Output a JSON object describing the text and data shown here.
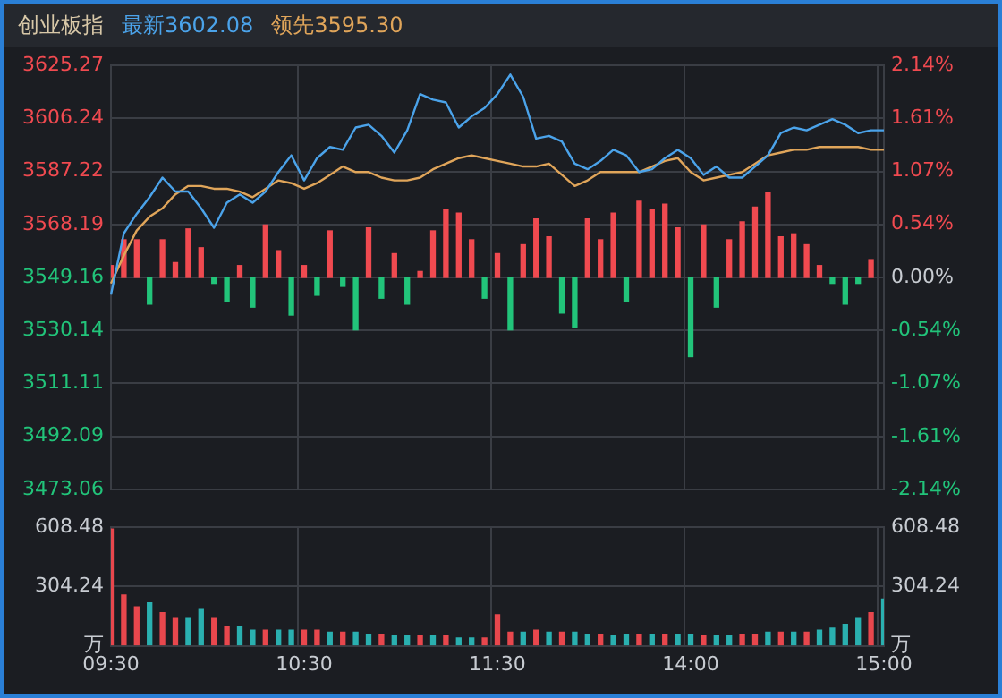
{
  "chart_data": [
    {
      "type": "line",
      "title": "创业板指",
      "legend": "top left",
      "grid": true,
      "marker": "none",
      "tick_labels": "y",
      "categories": [
        null,
        null,
        null,
        null,
        null,
        null,
        null,
        null,
        null,
        null,
        null,
        null,
        null,
        null,
        null,
        null,
        null,
        null,
        null,
        null,
        null,
        null,
        null,
        null,
        null,
        null,
        null,
        null,
        null,
        null,
        null,
        null,
        null,
        null,
        null,
        null,
        null,
        null,
        null,
        null,
        null,
        null,
        null,
        null,
        null,
        null,
        null,
        null,
        null,
        null,
        null,
        null,
        null,
        null,
        null,
        null,
        null,
        null,
        null,
        null,
        null
      ],
      "ylim": [
        3473.06,
        3625.27
      ],
      "yticks": [
        3473.06,
        3492.09,
        3511.11,
        3530.14,
        3549.16,
        3568.19,
        3587.22,
        3606.24,
        3625.27
      ],
      "y2lim": [
        -2.14,
        2.14
      ],
      "y2ticks": [
        {
          "value": -2.14,
          "label": "-2.14%"
        },
        {
          "value": -1.61,
          "label": "-1.61%"
        },
        {
          "value": -1.07,
          "label": "-1.07%"
        },
        {
          "value": -0.54,
          "label": "-0.54%"
        },
        {
          "value": 0,
          "label": "0.00%"
        },
        {
          "value": 0.54,
          "label": "0.54%"
        },
        {
          "value": 1.07,
          "label": "1.07%"
        },
        {
          "value": 1.61,
          "label": "1.61%"
        },
        {
          "value": 2.14,
          "label": "2.14%"
        }
      ],
      "series": [
        {
          "name": "最新3602.08",
          "color": "#4ba3ea",
          "values": [
            3543,
            3565,
            3572,
            3578,
            3585,
            3580,
            3580,
            3574,
            3567,
            3576,
            3579,
            3576,
            3580,
            3587,
            3593,
            3584,
            3592,
            3596,
            3595,
            3603,
            3604,
            3600,
            3594,
            3602,
            3615,
            3613,
            3612,
            3603,
            3607,
            3610,
            3615,
            3622,
            3614,
            3599,
            3600,
            3598,
            3590,
            3588,
            3591,
            3595,
            3593,
            3587,
            3588,
            3592,
            3595,
            3592,
            3586,
            3589,
            3585,
            3585,
            3589,
            3593,
            3601,
            3603,
            3602,
            3604,
            3606,
            3604,
            3601,
            3602,
            3602
          ]
        },
        {
          "name": "领先3595.30",
          "color": "#e0a55a",
          "values": [
            3547,
            3557,
            3566,
            3571,
            3574,
            3579,
            3582,
            3582,
            3581,
            3581,
            3580,
            3578,
            3581,
            3584,
            3583,
            3581,
            3583,
            3586,
            3589,
            3587,
            3587,
            3585,
            3584,
            3584,
            3585,
            3588,
            3590,
            3592,
            3593,
            3592,
            3591,
            3590,
            3589,
            3589,
            3590,
            3586,
            3582,
            3584,
            3587,
            3587,
            3587,
            3587,
            3589,
            3591,
            3592,
            3587,
            3584,
            3585,
            3586,
            3587,
            3590,
            3593,
            3594,
            3595,
            3595,
            3596,
            3596,
            3596,
            3596,
            3595,
            3595
          ]
        },
        {
          "type": "bar",
          "axis": "y2",
          "values": [
            0.12,
            0.38,
            0.38,
            -0.27,
            0.38,
            0.15,
            0.49,
            0.3,
            -0.06,
            -0.24,
            0.12,
            -0.3,
            0.53,
            0.27,
            -0.38,
            0.12,
            -0.18,
            0.47,
            -0.09,
            -0.53,
            0.5,
            -0.21,
            0.24,
            -0.27,
            0.06,
            0.47,
            0.68,
            0.65,
            0.38,
            -0.21,
            0.24,
            -0.53,
            0.33,
            0.59,
            0.41,
            -0.36,
            -0.5,
            0.59,
            0.38,
            0.65,
            -0.24,
            0.77,
            0.68,
            0.74,
            0.5,
            -0.8,
            0.53,
            -0.3,
            0.38,
            0.56,
            0.71,
            0.86,
            0.41,
            0.44,
            0.33,
            0.12,
            -0.06,
            -0.27,
            -0.06,
            0.18,
            null
          ],
          "colors": [
            "#f04a50",
            "#f04a50",
            "#f04a50",
            "#22c47a",
            "#f04a50",
            "#f04a50",
            "#f04a50",
            "#f04a50",
            "#22c47a",
            "#22c47a",
            "#f04a50",
            "#22c47a",
            "#f04a50",
            "#f04a50",
            "#22c47a",
            "#f04a50",
            "#22c47a",
            "#f04a50",
            "#22c47a",
            "#22c47a",
            "#f04a50",
            "#22c47a",
            "#f04a50",
            "#22c47a",
            "#f04a50",
            "#f04a50",
            "#f04a50",
            "#f04a50",
            "#f04a50",
            "#22c47a",
            "#f04a50",
            "#22c47a",
            "#f04a50",
            "#f04a50",
            "#f04a50",
            "#22c47a",
            "#22c47a",
            "#f04a50",
            "#f04a50",
            "#f04a50",
            "#22c47a",
            "#f04a50",
            "#f04a50",
            "#f04a50",
            "#f04a50",
            "#22c47a",
            "#f04a50",
            "#22c47a",
            "#f04a50",
            "#f04a50",
            "#f04a50",
            "#f04a50",
            "#f04a50",
            "#f04a50",
            "#f04a50",
            "#f04a50",
            "#22c47a",
            "#22c47a",
            "#22c47a",
            "#f04a50",
            "#f04a50"
          ]
        }
      ]
    },
    {
      "type": "bar",
      "grid": true,
      "categories": [
        "09:30",
        null,
        null,
        null,
        null,
        null,
        null,
        null,
        null,
        null,
        null,
        null,
        null,
        null,
        null,
        "10:30",
        null,
        null,
        null,
        null,
        null,
        null,
        null,
        null,
        null,
        null,
        null,
        null,
        null,
        null,
        "11:30",
        null,
        null,
        null,
        null,
        null,
        null,
        null,
        null,
        null,
        null,
        null,
        null,
        null,
        null,
        "14:00",
        null,
        null,
        null,
        null,
        null,
        null,
        null,
        null,
        null,
        null,
        null,
        null,
        null,
        null,
        "15:00"
      ],
      "ylim": [
        0,
        608.48
      ],
      "yticks": [
        {
          "value": 0,
          "label": "万"
        },
        304.24,
        608.48
      ],
      "y2lim": [
        0,
        608.48
      ],
      "y2ticks": [
        {
          "value": 0,
          "label": "万"
        },
        304.24,
        608.48
      ],
      "values": [
        600,
        260,
        200,
        220,
        170,
        140,
        140,
        190,
        140,
        100,
        100,
        80,
        80,
        80,
        80,
        80,
        80,
        70,
        70,
        70,
        60,
        60,
        50,
        50,
        50,
        50,
        50,
        40,
        40,
        40,
        160,
        70,
        70,
        80,
        70,
        70,
        70,
        60,
        60,
        50,
        60,
        60,
        60,
        60,
        60,
        60,
        50,
        50,
        50,
        60,
        60,
        70,
        70,
        70,
        70,
        80,
        90,
        110,
        140,
        170,
        240
      ],
      "colors": [
        "#e8474d",
        "#e8474d",
        "#e8474d",
        "#2ab0b0",
        "#e8474d",
        "#e8474d",
        "#2ab0b0",
        "#2ab0b0",
        "#e8474d",
        "#e8474d",
        "#2ab0b0",
        "#2ab0b0",
        "#e8474d",
        "#2ab0b0",
        "#2ab0b0",
        "#e8474d",
        "#e8474d",
        "#2ab0b0",
        "#e8474d",
        "#2ab0b0",
        "#2ab0b0",
        "#e8474d",
        "#2ab0b0",
        "#2ab0b0",
        "#e8474d",
        "#2ab0b0",
        "#e8474d",
        "#2ab0b0",
        "#2ab0b0",
        "#e8474d",
        "#e8474d",
        "#e8474d",
        "#2ab0b0",
        "#e8474d",
        "#2ab0b0",
        "#e8474d",
        "#2ab0b0",
        "#2ab0b0",
        "#e8474d",
        "#2ab0b0",
        "#2ab0b0",
        "#e8474d",
        "#2ab0b0",
        "#e8474d",
        "#2ab0b0",
        "#2ab0b0",
        "#e8474d",
        "#2ab0b0",
        "#2ab0b0",
        "#e8474d",
        "#e8474d",
        "#2ab0b0",
        "#e8474d",
        "#2ab0b0",
        "#e8474d",
        "#2ab0b0",
        "#2ab0b0",
        "#2ab0b0",
        "#2ab0b0",
        "#e8474d",
        "#2ab0b0"
      ]
    }
  ]
}
